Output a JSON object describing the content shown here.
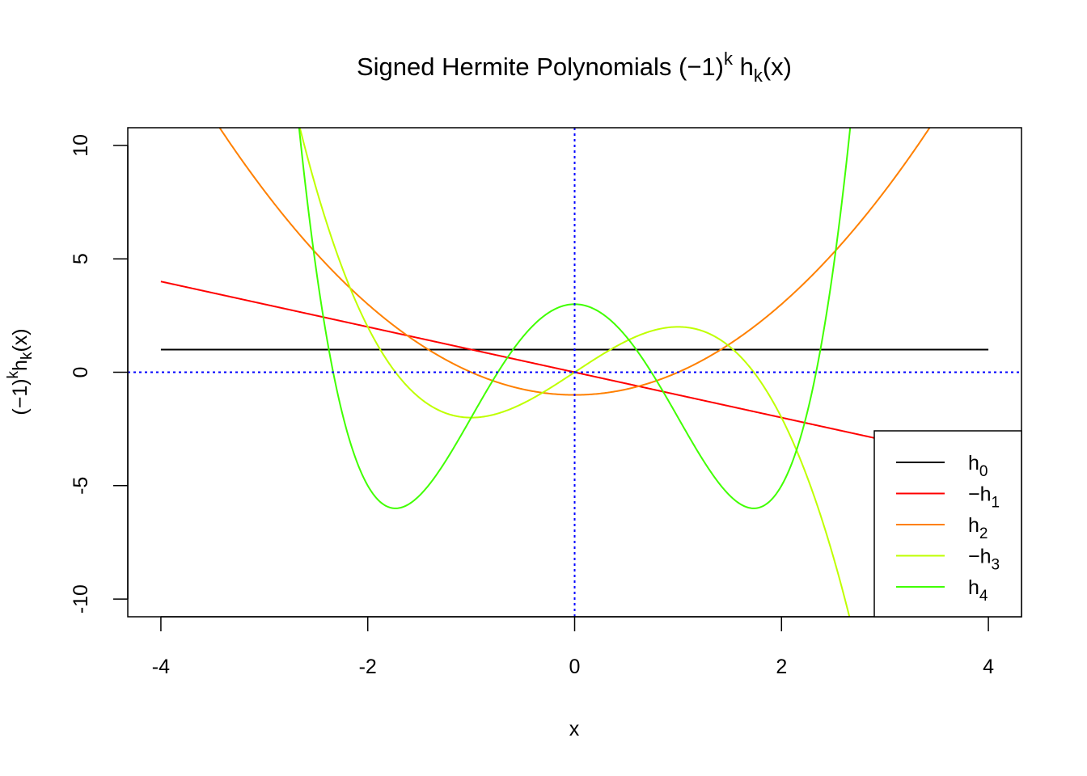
{
  "chart_data": {
    "type": "line",
    "title": {
      "main": "Signed Hermite Polynomials ",
      "open": "(",
      "minus": "−",
      "one": "1",
      "close": ")",
      "sup": "k",
      "h": " h",
      "sub": "k",
      "arg": "(x)"
    },
    "xlabel": "x",
    "ylabel": {
      "open": "(",
      "minus": "−",
      "one": "1",
      "close": ")",
      "sup": "k",
      "h": "h",
      "sub": "k",
      "arg": "(x)"
    },
    "xlim": [
      -4.32,
      4.32
    ],
    "ylim": [
      -10.78,
      10.78
    ],
    "x_range": [
      -4,
      4
    ],
    "x_ticks": [
      -4,
      -2,
      0,
      2,
      4
    ],
    "x_tick_labels": [
      "-4",
      "-2",
      "0",
      "2",
      "4"
    ],
    "y_ticks": [
      -10,
      -5,
      0,
      5,
      10
    ],
    "y_tick_labels": [
      "-10",
      "-5",
      "0",
      "5",
      "10"
    ],
    "grid": false,
    "reference_lines": {
      "x": 0,
      "y": 0,
      "color": "#0000ff",
      "style": "dotted"
    },
    "legend_placement": "bottom-right",
    "series": [
      {
        "name": "h",
        "sign": "",
        "sub": "0",
        "color": "#000000",
        "coefficients": [
          1
        ]
      },
      {
        "name": "h",
        "sign": "−",
        "sub": "1",
        "color": "#ff0000",
        "coefficients": [
          0,
          -1
        ]
      },
      {
        "name": "h",
        "sign": "",
        "sub": "2",
        "color": "#ff8000",
        "coefficients": [
          -1,
          0,
          1
        ]
      },
      {
        "name": "h",
        "sign": "−",
        "sub": "3",
        "color": "#bfff00",
        "coefficients": [
          0,
          3,
          0,
          -1
        ]
      },
      {
        "name": "h",
        "sign": "",
        "sub": "4",
        "color": "#40ff00",
        "coefficients": [
          3,
          0,
          -6,
          0,
          1
        ]
      }
    ]
  }
}
